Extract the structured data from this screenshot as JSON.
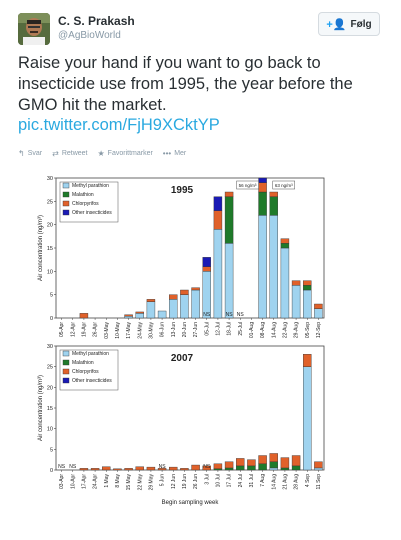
{
  "user": {
    "name": "C. S. Prakash",
    "handle": "@AgBioWorld",
    "follow_label": "Følg"
  },
  "tweet": {
    "text": "Raise your hand if you want to go back to insecticide use from 1995, the year before the GMO hit the market.",
    "link": "pic.twitter.com/FjH9XCktYP"
  },
  "actions": {
    "reply": "Svar",
    "retweet": "Retweet",
    "favorite": "Favorittmarker",
    "more": "Mer"
  },
  "colors": {
    "methyl_parathion": "#9fd3ef",
    "malathion": "#1f7a2a",
    "chlorpyrifos": "#e0612a",
    "other": "#1a1ab5",
    "link": "#2aa9e0"
  },
  "chart_data": [
    {
      "type": "bar",
      "title": "1995",
      "ylabel": "Air concentration (ng/m³)",
      "ylim": [
        0,
        30
      ],
      "yticks": [
        0,
        5,
        10,
        15,
        20,
        25,
        30
      ],
      "legend": [
        "Methyl parathion",
        "Malathion",
        "Chlorpyrifos",
        "Other insecticides"
      ],
      "legend_position": "top-left",
      "annotations": [
        "56 ng/m³",
        "63 ng/m³",
        "NS",
        "NS",
        "NS"
      ],
      "categories": [
        "05-Apr",
        "12-Apr",
        "19-Apr",
        "26-Apr",
        "03-May",
        "10-May",
        "17-May",
        "24-May",
        "30-May",
        "06-Jun",
        "13-Jun",
        "20-Jun",
        "27-Jun",
        "05-Jul",
        "12-Jul",
        "18-Jul",
        "25-Jul",
        "01-Aug",
        "08-Aug",
        "14-Aug",
        "22-Aug",
        "29-Aug",
        "05-Sep",
        "12-Sep"
      ],
      "bars": [
        [
          0,
          0,
          0,
          0
        ],
        [
          0,
          0,
          0,
          0
        ],
        [
          0,
          0,
          1,
          0
        ],
        [
          0,
          0,
          0,
          0
        ],
        [
          0,
          0,
          0,
          0
        ],
        [
          0,
          0,
          0,
          0
        ],
        [
          0.4,
          0,
          0.3,
          0
        ],
        [
          1,
          0,
          0.3,
          0
        ],
        [
          3.5,
          0,
          0.5,
          0
        ],
        [
          1.5,
          0,
          0,
          0
        ],
        [
          4,
          0,
          1,
          0
        ],
        [
          5,
          0,
          1,
          0
        ],
        [
          6,
          0,
          0.5,
          0
        ],
        [
          10,
          0,
          1,
          2
        ],
        [
          19,
          0,
          4,
          3
        ],
        [
          16,
          10,
          1,
          0
        ],
        [
          0,
          0,
          0,
          0
        ],
        [
          0,
          0,
          0,
          0
        ],
        [
          22,
          5,
          2,
          1
        ],
        [
          22,
          4,
          1,
          0
        ],
        [
          15,
          1,
          1,
          0
        ],
        [
          7,
          0,
          1,
          0
        ],
        [
          6,
          1,
          1,
          0
        ],
        [
          2,
          0,
          1,
          0
        ]
      ],
      "ns": [
        "05-Jul",
        "18-Jul",
        "25-Jul"
      ]
    },
    {
      "type": "bar",
      "title": "2007",
      "xlabel": "Begin sampling week",
      "ylabel": "Air concentration (ng/m³)",
      "ylim": [
        0,
        30
      ],
      "yticks": [
        0,
        5,
        10,
        15,
        20,
        25,
        30
      ],
      "legend": [
        "Methyl parathion",
        "Malathion",
        "Chlorpyrifos",
        "Other insecticides"
      ],
      "legend_position": "top-left",
      "annotations": [
        "NS",
        "NS",
        "NS",
        "NS"
      ],
      "categories": [
        "03-Apr",
        "10-Apr",
        "17-Apr",
        "24-Apr",
        "1 May",
        "8 May",
        "15 May",
        "22 May",
        "29 May",
        "5 Jun",
        "12 Jun",
        "19 Jun",
        "26 Jun",
        "3 Jul",
        "10 Jul",
        "17 Jul",
        "24 Jul",
        "31 Jul",
        "7 Aug",
        "14 Aug",
        "21 Aug",
        "28 Aug",
        "4 Sep",
        "11 Sep"
      ],
      "bars": [
        [
          0,
          0,
          0,
          0
        ],
        [
          0,
          0,
          0,
          0
        ],
        [
          0,
          0,
          0.4,
          0
        ],
        [
          0,
          0,
          0.4,
          0
        ],
        [
          0,
          0,
          0.8,
          0
        ],
        [
          0,
          0,
          0.3,
          0
        ],
        [
          0,
          0,
          0.4,
          0
        ],
        [
          0,
          0,
          0.8,
          0
        ],
        [
          0,
          0,
          0.7,
          0
        ],
        [
          0,
          0,
          0.4,
          0
        ],
        [
          0,
          0,
          0.7,
          0
        ],
        [
          0,
          0,
          0.4,
          0
        ],
        [
          0,
          0,
          1.2,
          0
        ],
        [
          0,
          0,
          1,
          0
        ],
        [
          0,
          0.3,
          1.2,
          0
        ],
        [
          0,
          0.5,
          1.5,
          0
        ],
        [
          0,
          1,
          1.8,
          0
        ],
        [
          0,
          1,
          1.5,
          0
        ],
        [
          0,
          1.5,
          2,
          0
        ],
        [
          0.5,
          1.5,
          2,
          0
        ],
        [
          0,
          0.5,
          2.5,
          0
        ],
        [
          0,
          1,
          2.5,
          0
        ],
        [
          25,
          0,
          3,
          0
        ],
        [
          0.5,
          0,
          1.5,
          0
        ]
      ],
      "ns": [
        "03-Apr",
        "10-Apr",
        "5 Jun",
        "3 Jul"
      ]
    }
  ]
}
